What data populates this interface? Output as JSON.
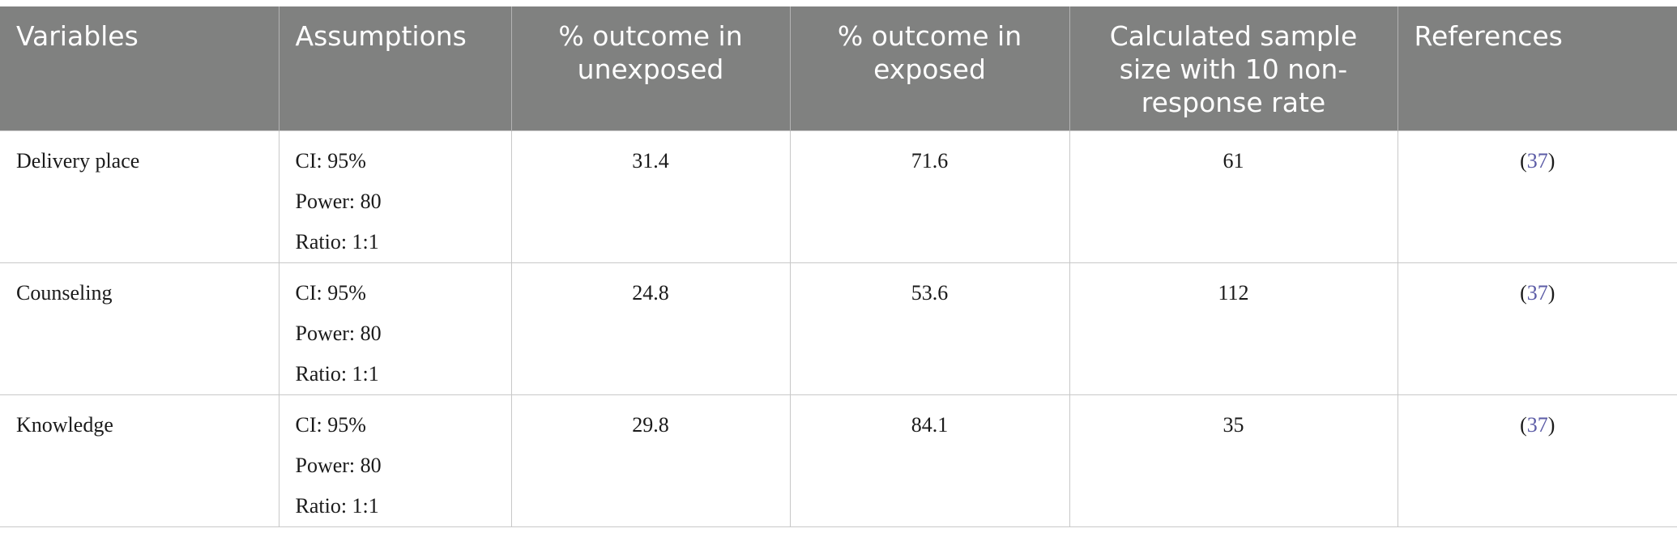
{
  "table": {
    "headers": [
      "Variables",
      "Assumptions",
      "% outcome in unexposed",
      "% outcome in exposed",
      "Calculated sample size with 10 non-response rate",
      "References"
    ],
    "rows": [
      {
        "variable": "Delivery place",
        "assumptions": [
          "CI: 95%",
          "Power: 80",
          "Ratio: 1:1"
        ],
        "unexposed": "31.4",
        "exposed": "71.6",
        "sample_size": "61",
        "reference": {
          "open": "(",
          "num": "37",
          "close": ")"
        }
      },
      {
        "variable": "Counseling",
        "assumptions": [
          "CI: 95%",
          "Power: 80",
          "Ratio: 1:1"
        ],
        "unexposed": "24.8",
        "exposed": "53.6",
        "sample_size": "112",
        "reference": {
          "open": "(",
          "num": "37",
          "close": ")"
        }
      },
      {
        "variable": "Knowledge",
        "assumptions": [
          "CI: 95%",
          "Power: 80",
          "Ratio: 1:1"
        ],
        "unexposed": "29.8",
        "exposed": "84.1",
        "sample_size": "35",
        "reference": {
          "open": "(",
          "num": "37",
          "close": ")"
        }
      }
    ]
  },
  "colors": {
    "header_bg": "#808180",
    "header_text": "#ffffff",
    "link": "#5b5ba6"
  }
}
